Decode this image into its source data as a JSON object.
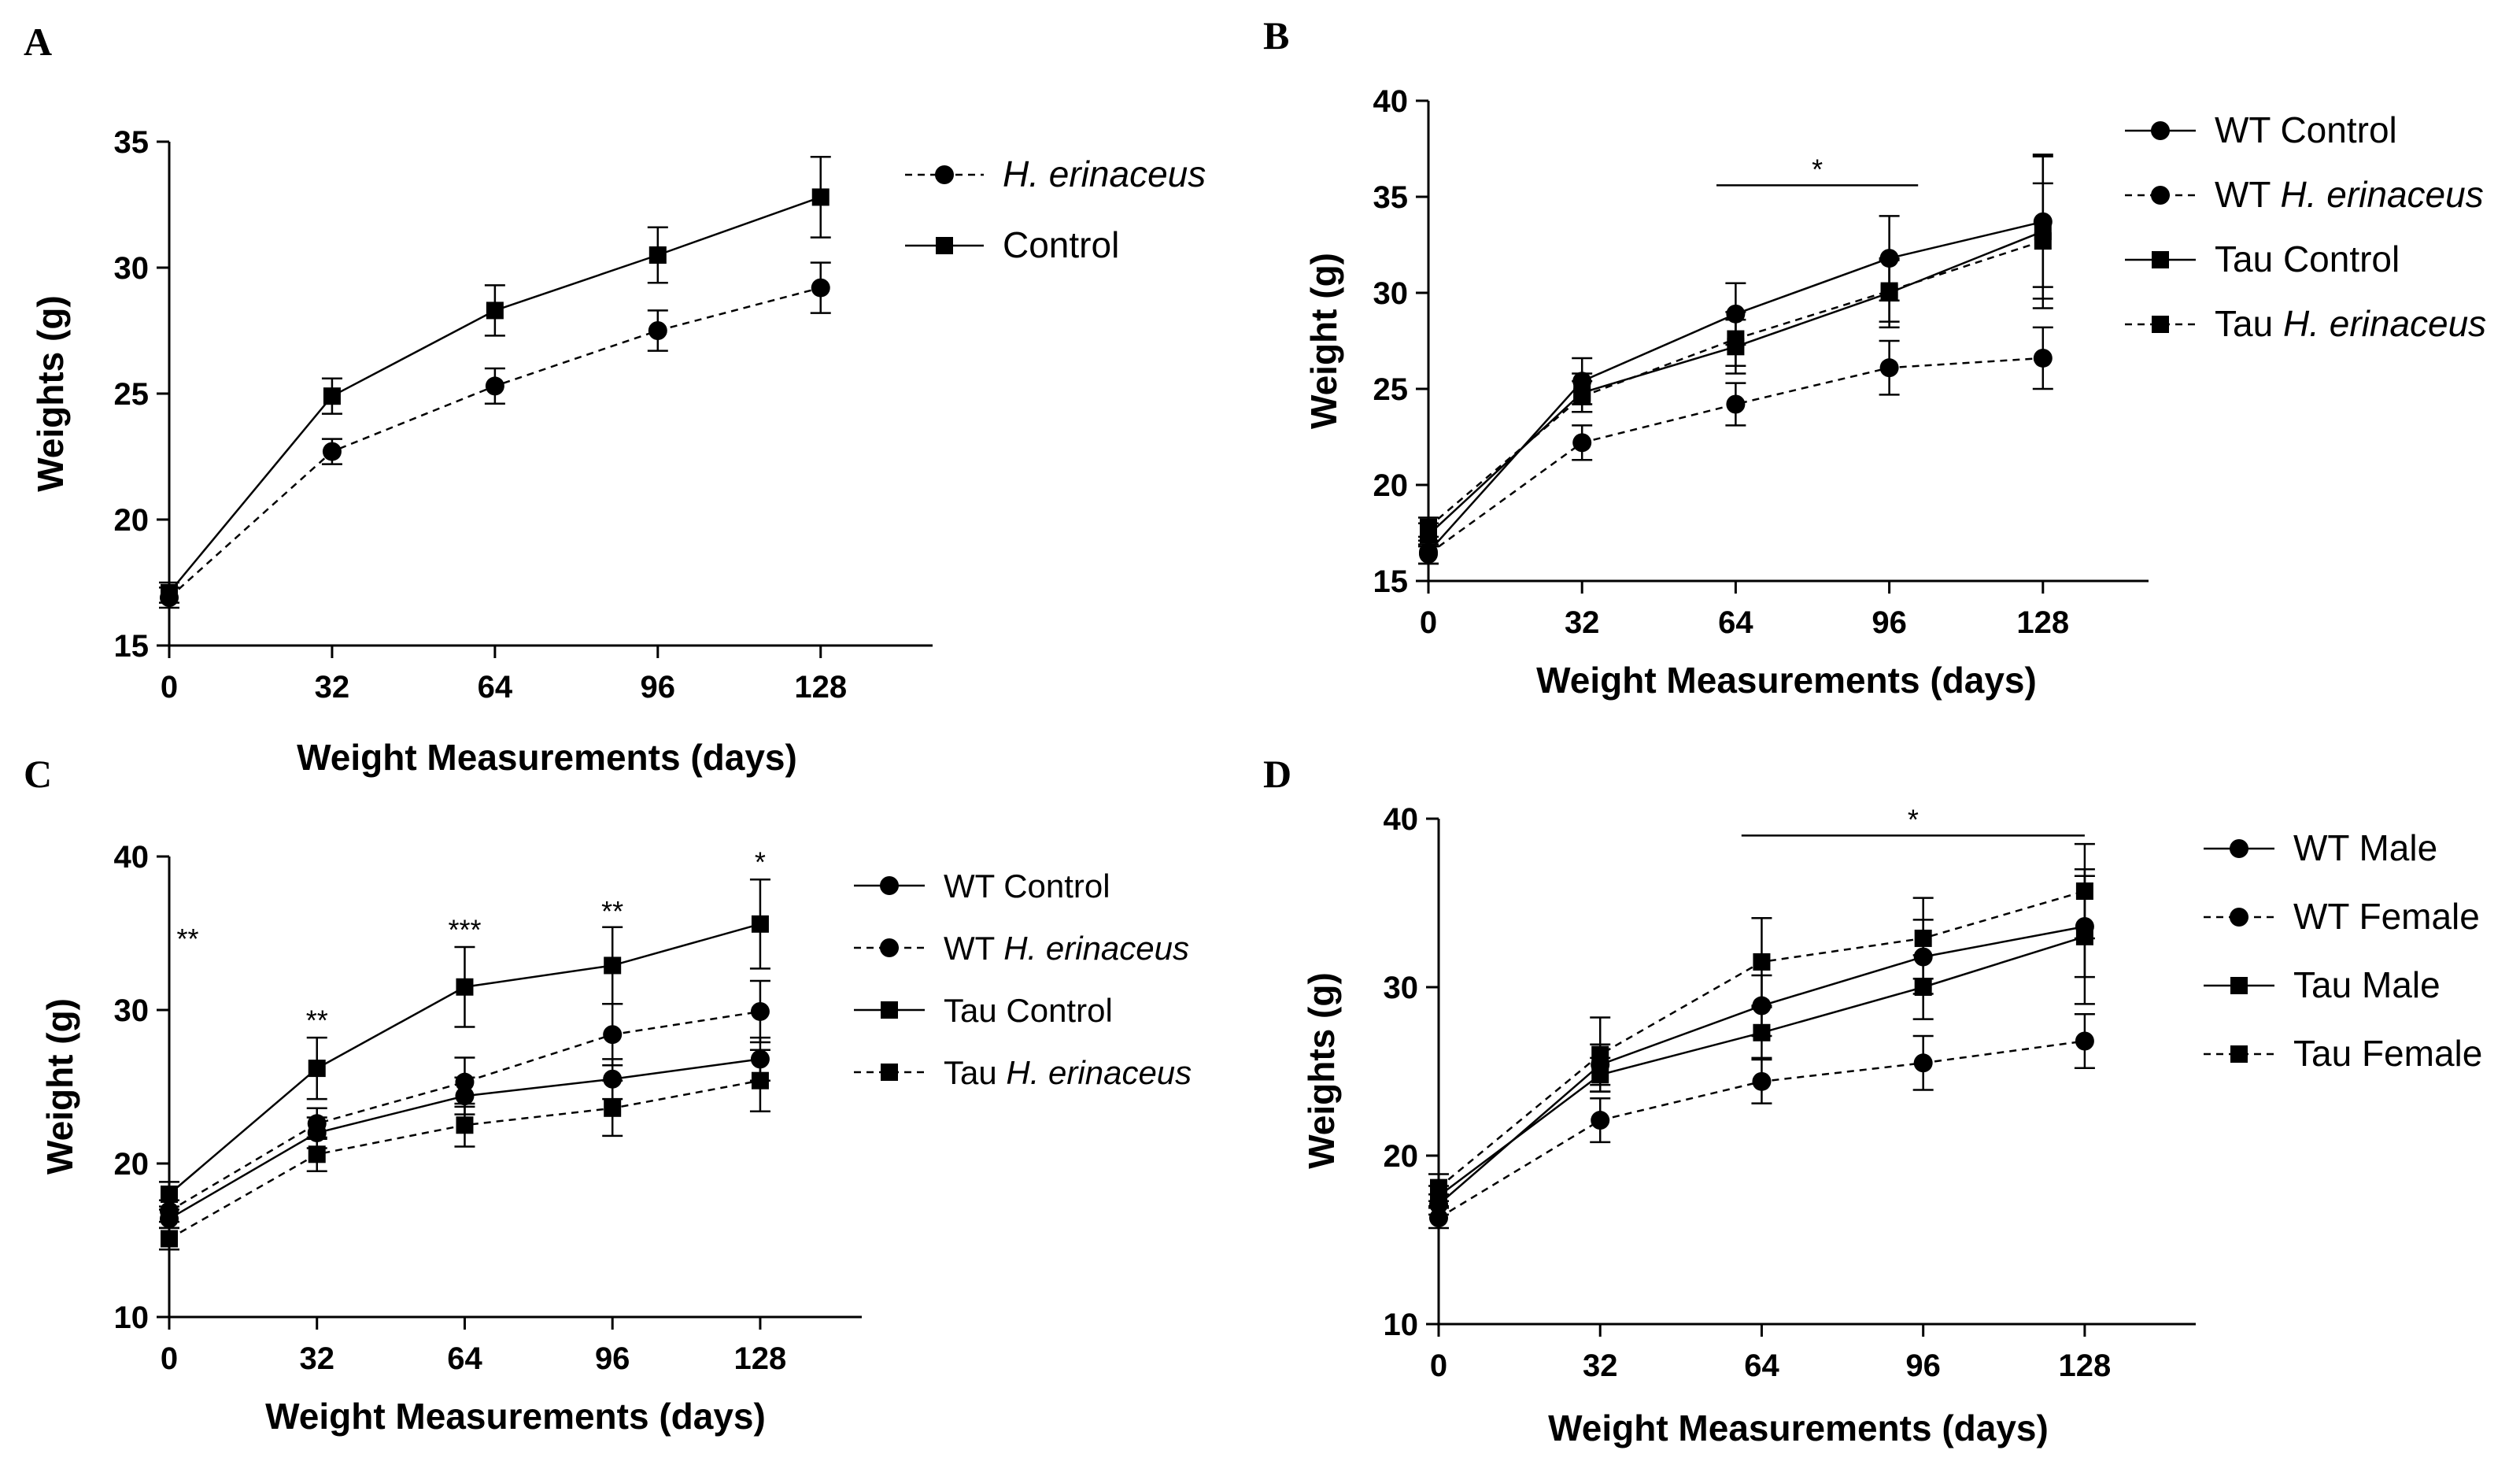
{
  "chart_data": [
    {
      "panel": "A",
      "type": "line",
      "xlabel": "Weight Measurements (days)",
      "ylabel": "Weights (g)",
      "xlim": [
        0,
        150
      ],
      "ylim": [
        15,
        35
      ],
      "xticks": [
        0,
        32,
        64,
        96,
        128
      ],
      "yticks": [
        15,
        20,
        25,
        30,
        35
      ],
      "x": [
        0,
        32,
        64,
        96,
        128
      ],
      "series": [
        {
          "name": "H. erinaceus",
          "name_prefix": "",
          "name_italic": "H. erinaceus",
          "marker": "circle",
          "dashed": true,
          "values": [
            16.9,
            22.7,
            25.3,
            27.5,
            29.2
          ],
          "errors": [
            0.4,
            0.5,
            0.7,
            0.8,
            1.0
          ]
        },
        {
          "name": "Control",
          "name_prefix": "Control",
          "name_italic": "",
          "marker": "square",
          "dashed": false,
          "values": [
            17.1,
            24.9,
            28.3,
            30.5,
            32.8
          ],
          "errors": [
            0.4,
            0.7,
            1.0,
            1.1,
            1.6
          ]
        }
      ],
      "annotations": []
    },
    {
      "panel": "B",
      "type": "line",
      "xlabel": "Weight Measurements (days)",
      "ylabel": "Weight (g)",
      "xlim": [
        0,
        150
      ],
      "ylim": [
        15,
        40
      ],
      "xticks": [
        0,
        32,
        64,
        96,
        128
      ],
      "yticks": [
        15,
        20,
        25,
        30,
        35,
        40
      ],
      "x": [
        0,
        32,
        64,
        96,
        128
      ],
      "series": [
        {
          "name": "WT Control",
          "name_prefix": "WT Control",
          "name_italic": "",
          "marker": "circle",
          "dashed": false,
          "values": [
            16.5,
            25.4,
            28.9,
            31.8,
            33.7
          ],
          "errors": [
            0.6,
            1.2,
            1.6,
            2.2,
            3.4
          ]
        },
        {
          "name": "WT H. erinaceus",
          "name_prefix": "WT ",
          "name_italic": "H. erinaceus",
          "marker": "circle",
          "dashed": true,
          "values": [
            16.4,
            22.2,
            24.2,
            26.1,
            26.6
          ],
          "errors": [
            0.5,
            0.9,
            1.1,
            1.4,
            1.6
          ]
        },
        {
          "name": "Tau Control",
          "name_prefix": "Tau Control",
          "name_italic": "",
          "marker": "square",
          "dashed": false,
          "values": [
            17.4,
            24.8,
            27.2,
            30.0,
            33.2
          ],
          "errors": [
            0.6,
            1.0,
            1.4,
            1.8,
            4.0
          ]
        },
        {
          "name": "Tau H. erinaceus",
          "name_prefix": "Tau ",
          "name_italic": "H. erinaceus",
          "marker": "square",
          "dashed": true,
          "values": [
            17.8,
            24.6,
            27.6,
            30.1,
            32.7
          ],
          "errors": [
            0.5,
            0.8,
            1.4,
            1.6,
            3.0
          ]
        }
      ],
      "annotations": [
        {
          "text": "*",
          "x_start": 60,
          "x_end": 102,
          "y": 35.6
        }
      ]
    },
    {
      "panel": "C",
      "type": "line",
      "xlabel": "Weight Measurements (days)",
      "ylabel": "Weight (g)",
      "xlim": [
        0,
        150
      ],
      "ylim": [
        10,
        40
      ],
      "xticks": [
        0,
        32,
        64,
        96,
        128
      ],
      "yticks": [
        10,
        20,
        30,
        40
      ],
      "x": [
        0,
        32,
        64,
        96,
        128
      ],
      "series": [
        {
          "name": "WT Control",
          "name_prefix": "WT Control",
          "name_italic": "",
          "marker": "circle",
          "dashed": false,
          "values": [
            16.4,
            22.0,
            24.4,
            25.5,
            26.8
          ],
          "errors": [
            0.6,
            1.0,
            1.2,
            1.3,
            1.4
          ]
        },
        {
          "name": "WT H. erinaceus",
          "name_prefix": "WT ",
          "name_italic": "H. erinaceus",
          "marker": "circle",
          "dashed": true,
          "values": [
            16.9,
            22.6,
            25.3,
            28.4,
            29.9
          ],
          "errors": [
            0.7,
            1.0,
            1.6,
            2.0,
            2.0
          ]
        },
        {
          "name": "Tau Control",
          "name_prefix": "Tau Control",
          "name_italic": "",
          "marker": "square",
          "dashed": false,
          "values": [
            18.0,
            26.2,
            31.5,
            32.9,
            35.6
          ],
          "errors": [
            0.8,
            2.0,
            2.6,
            2.5,
            2.9
          ]
        },
        {
          "name": "Tau H. erinaceus",
          "name_prefix": "Tau ",
          "name_italic": "H. erinaceus",
          "marker": "square",
          "dashed": true,
          "values": [
            15.1,
            20.6,
            22.5,
            23.6,
            25.4
          ],
          "errors": [
            0.7,
            1.1,
            1.4,
            1.8,
            2.0
          ]
        }
      ],
      "annotations": [
        {
          "text": "**",
          "x": 4,
          "y": 34.0
        },
        {
          "text": "**",
          "x": 32,
          "y": 28.7
        },
        {
          "text": "***",
          "x": 64,
          "y": 34.6
        },
        {
          "text": "**",
          "x": 96,
          "y": 35.8
        },
        {
          "text": "*",
          "x": 128,
          "y": 39.0
        }
      ]
    },
    {
      "panel": "D",
      "type": "line",
      "xlabel": "Weight Measurements (days)",
      "ylabel": "Weights (g)",
      "xlim": [
        0,
        150
      ],
      "ylim": [
        10,
        40
      ],
      "xticks": [
        0,
        32,
        64,
        96,
        128
      ],
      "yticks": [
        10,
        20,
        30,
        40
      ],
      "x": [
        0,
        32,
        64,
        96,
        128
      ],
      "series": [
        {
          "name": "WT Male",
          "name_prefix": "WT Male",
          "name_italic": "",
          "marker": "circle",
          "dashed": false,
          "values": [
            17.1,
            25.4,
            28.9,
            31.8,
            33.6
          ],
          "errors": [
            0.6,
            1.2,
            1.8,
            2.2,
            3.0
          ]
        },
        {
          "name": "WT Female",
          "name_prefix": "WT Female",
          "name_italic": "",
          "marker": "circle",
          "dashed": true,
          "values": [
            16.3,
            22.1,
            24.4,
            25.5,
            26.8
          ],
          "errors": [
            0.6,
            1.3,
            1.3,
            1.6,
            1.6
          ]
        },
        {
          "name": "Tau Male",
          "name_prefix": "Tau Male",
          "name_italic": "",
          "marker": "square",
          "dashed": false,
          "values": [
            17.6,
            24.8,
            27.3,
            30.0,
            33.0
          ],
          "errors": [
            0.6,
            1.0,
            1.5,
            1.9,
            4.0
          ]
        },
        {
          "name": "Tau Female",
          "name_prefix": "Tau Female",
          "name_italic": "",
          "marker": "square",
          "dashed": true,
          "values": [
            18.1,
            26.0,
            31.5,
            32.9,
            35.7
          ],
          "errors": [
            0.8,
            2.2,
            2.6,
            2.4,
            2.8
          ]
        }
      ],
      "annotations": [
        {
          "text": "*",
          "x_start": 60,
          "x_end": 128,
          "y": 39.0
        }
      ]
    }
  ]
}
